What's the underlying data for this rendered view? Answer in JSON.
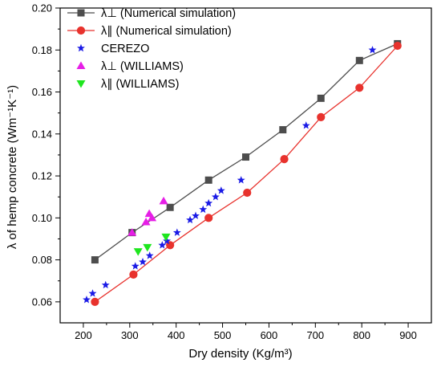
{
  "chart_data": {
    "type": "scatter",
    "xlabel": "Dry density (Kg/m³)",
    "ylabel": "λ of hemp concrete (Wm⁻¹K⁻¹)",
    "xlim": [
      150,
      950
    ],
    "ylim": [
      0.05,
      0.2
    ],
    "xticks": [
      200,
      300,
      400,
      500,
      600,
      700,
      800,
      900
    ],
    "yticks": [
      0.06,
      0.08,
      0.1,
      0.12,
      0.14,
      0.16,
      0.18,
      0.2
    ],
    "xtick_labels": [
      "200",
      "300",
      "400",
      "500",
      "600",
      "700",
      "800",
      "900"
    ],
    "ytick_labels": [
      "0.06",
      "0.08",
      "0.10",
      "0.12",
      "0.14",
      "0.16",
      "0.18",
      "0.20"
    ],
    "grid": false,
    "legend_position": "top-left",
    "series": [
      {
        "name": "λ⊥ (Numerical simulation)",
        "marker": "square",
        "line": true,
        "color": "#4d4d4d",
        "x": [
          225,
          305,
          387,
          470,
          550,
          630,
          712,
          795,
          877
        ],
        "y": [
          0.08,
          0.093,
          0.105,
          0.118,
          0.129,
          0.142,
          0.157,
          0.175,
          0.183
        ]
      },
      {
        "name": "λ∥ (Numerical simulation)",
        "marker": "circle",
        "line": true,
        "color": "#e8322d",
        "x": [
          225,
          308,
          387,
          470,
          553,
          633,
          712,
          795,
          877
        ],
        "y": [
          0.06,
          0.073,
          0.087,
          0.1,
          0.112,
          0.128,
          0.148,
          0.162,
          0.182
        ]
      },
      {
        "name": "CEREZO",
        "marker": "star",
        "line": false,
        "color": "#1a1ae6",
        "x": [
          207,
          220,
          248,
          312,
          328,
          343,
          370,
          380,
          402,
          430,
          442,
          458,
          470,
          485,
          497,
          540,
          680,
          823
        ],
        "y": [
          0.061,
          0.064,
          0.068,
          0.077,
          0.079,
          0.082,
          0.087,
          0.089,
          0.093,
          0.099,
          0.101,
          0.104,
          0.107,
          0.11,
          0.113,
          0.118,
          0.144,
          0.18
        ]
      },
      {
        "name": "λ⊥ (WILLIAMS)",
        "marker": "triangle-up",
        "line": false,
        "color": "#e61ee6",
        "x": [
          305,
          335,
          342,
          348,
          373
        ],
        "y": [
          0.093,
          0.098,
          0.102,
          0.1,
          0.108
        ]
      },
      {
        "name": "λ∥ (WILLIAMS)",
        "marker": "triangle-down",
        "line": false,
        "color": "#1ee61e",
        "x": [
          318,
          338,
          378
        ],
        "y": [
          0.084,
          0.086,
          0.091
        ]
      }
    ]
  }
}
